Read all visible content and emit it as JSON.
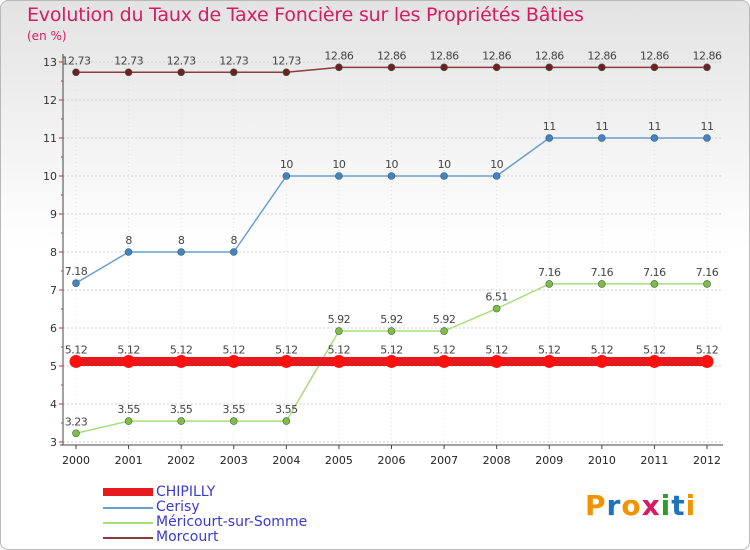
{
  "header": {
    "title": "Evolution du Taux de Taxe Foncière sur les Propriétés Bâties",
    "unit": "(en %)"
  },
  "logo": {
    "text": "Proxiti",
    "colors": [
      "#f29400",
      "#1e73be",
      "#f29400",
      "#d81b60",
      "#2aa02a",
      "#1e73be",
      "#f29400"
    ]
  },
  "chart_data": {
    "type": "line",
    "title": "Evolution du Taux de Taxe Foncière sur les Propriétés Bâties",
    "ylabel": "(en %)",
    "xlabel": "",
    "ylim": [
      3,
      13
    ],
    "yticks": [
      3,
      4,
      5,
      6,
      7,
      8,
      9,
      10,
      11,
      12,
      13
    ],
    "categories": [
      "2000",
      "2001",
      "2002",
      "2003",
      "2004",
      "2005",
      "2006",
      "2007",
      "2008",
      "2009",
      "2010",
      "2011",
      "2012"
    ],
    "series": [
      {
        "name": "CHIPILLY",
        "color": "#e41a1c",
        "thick": true,
        "values": [
          5.12,
          5.12,
          5.12,
          5.12,
          5.12,
          5.12,
          5.12,
          5.12,
          5.12,
          5.12,
          5.12,
          5.12,
          5.12
        ],
        "labels": [
          "5.12",
          "5.12",
          "5.12",
          "5.12",
          "5.12",
          "5.12",
          "5.12",
          "5.12",
          "5.12",
          "5.12",
          "5.12",
          "5.12",
          "5.12"
        ]
      },
      {
        "name": "Cerisy",
        "color": "#6a9fd0",
        "marker": "#3a86c8",
        "values": [
          7.18,
          8,
          8,
          8,
          10,
          10,
          10,
          10,
          10,
          11,
          11,
          11,
          11
        ],
        "labels": [
          "7.18",
          "8",
          "8",
          "8",
          "10",
          "10",
          "10",
          "10",
          "10",
          "11",
          "11",
          "11",
          "11"
        ]
      },
      {
        "name": "Méricourt-sur-Somme",
        "color": "#a8de7c",
        "marker": "#7ac142",
        "values": [
          3.23,
          3.55,
          3.55,
          3.55,
          3.55,
          5.92,
          5.92,
          5.92,
          6.51,
          7.16,
          7.16,
          7.16,
          7.16
        ],
        "labels": [
          "3.23",
          "3.55",
          "3.55",
          "3.55",
          "3.55",
          "5.92",
          "5.92",
          "5.92",
          "6.51",
          "7.16",
          "7.16",
          "7.16",
          "7.16"
        ]
      },
      {
        "name": "Morcourt",
        "color": "#8c3b3b",
        "marker": "#6b2222",
        "values": [
          12.73,
          12.73,
          12.73,
          12.73,
          12.73,
          12.86,
          12.86,
          12.86,
          12.86,
          12.86,
          12.86,
          12.86,
          12.86
        ],
        "labels": [
          "12.73",
          "12.73",
          "12.73",
          "12.73",
          "12.73",
          "12.86",
          "12.86",
          "12.86",
          "12.86",
          "12.86",
          "12.86",
          "12.86",
          "12.86"
        ]
      }
    ],
    "legend_position": "bottom-left"
  }
}
